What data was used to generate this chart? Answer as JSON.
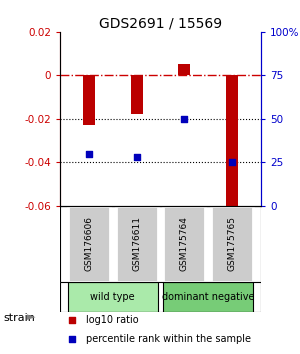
{
  "title": "GDS2691 / 15569",
  "samples": [
    "GSM176606",
    "GSM176611",
    "GSM175764",
    "GSM175765"
  ],
  "log10_ratio": [
    -0.023,
    -0.018,
    0.005,
    -0.06
  ],
  "percentile_rank": [
    30,
    28,
    50,
    25
  ],
  "ylim_left": [
    -0.06,
    0.02
  ],
  "ylim_right": [
    0,
    100
  ],
  "yticks_left": [
    -0.06,
    -0.04,
    -0.02,
    0.0,
    0.02
  ],
  "yticks_left_labels": [
    "-0.06",
    "-0.04",
    "-0.02",
    "0",
    "0.02"
  ],
  "yticks_right": [
    0,
    25,
    50,
    75,
    100
  ],
  "yticks_right_labels": [
    "0",
    "25",
    "50",
    "75",
    "100%"
  ],
  "groups": [
    {
      "label": "wild type",
      "samples": [
        0,
        1
      ],
      "color": "#aaeaaa"
    },
    {
      "label": "dominant negative",
      "samples": [
        2,
        3
      ],
      "color": "#77cc77"
    }
  ],
  "bar_color": "#bb0000",
  "point_color": "#0000bb",
  "bar_width": 0.25,
  "hline_zero_color": "#cc0000",
  "hline_dot_color": "#000000",
  "sample_box_color": "#cccccc",
  "background_color": "#ffffff",
  "title_color": "#000000",
  "left_axis_color": "#cc0000",
  "right_axis_color": "#0000cc"
}
